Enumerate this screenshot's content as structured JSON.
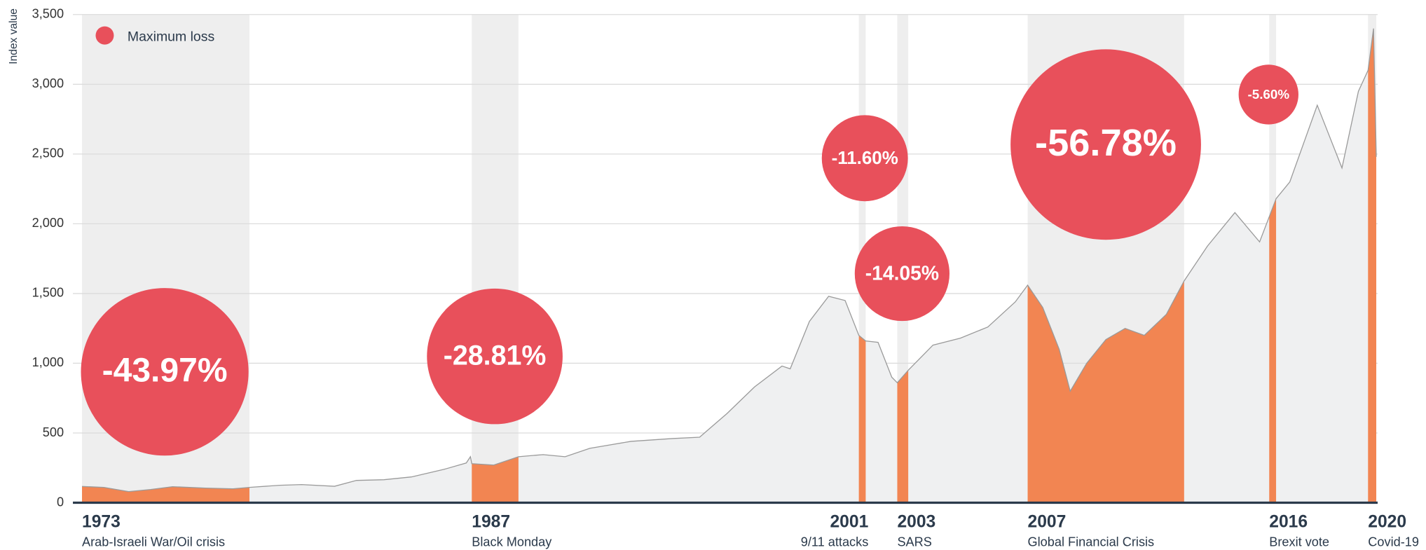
{
  "chart_data": {
    "type": "area",
    "y_label": "Index value",
    "legend": "Maximum loss",
    "xlim": [
      1973,
      2020.2
    ],
    "ylim": [
      0,
      3500
    ],
    "yticks": [
      0,
      {
        "value": 500,
        "label": "500"
      },
      {
        "value": 1000,
        "label": "1,000"
      },
      {
        "value": 1500,
        "label": "1,500"
      },
      {
        "value": 2000,
        "label": "2,000"
      },
      {
        "value": 2500,
        "label": "2,500"
      },
      {
        "value": 3000,
        "label": "3,000"
      },
      {
        "value": 3500,
        "label": "3,500"
      }
    ],
    "grid": true,
    "line_color": "#9a9a9a",
    "area_color": "#eff0f1",
    "crisis_color": "#f28552",
    "band_color": "#eeeeee",
    "bubble_color": "#e8505b",
    "x": [
      1973.0,
      1973.8,
      1974.7,
      1975.5,
      1976.3,
      1977.5,
      1978.5,
      1979.1,
      1980.2,
      1981.0,
      1982.2,
      1983.0,
      1984.0,
      1985.0,
      1986.2,
      1987.0,
      1987.15,
      1987.2,
      1988.0,
      1988.9,
      1989.8,
      1990.6,
      1991.5,
      1993.0,
      1994.5,
      1995.5,
      1996.5,
      1997.5,
      1998.5,
      1998.8,
      1999.5,
      2000.2,
      2000.8,
      2001.3,
      2001.55,
      2002.0,
      2002.5,
      2002.7,
      2003.1,
      2004.0,
      2005.0,
      2006.0,
      2007.0,
      2007.45,
      2008.0,
      2008.6,
      2009.0,
      2009.6,
      2010.3,
      2011.0,
      2011.7,
      2012.5,
      2013.15,
      2014.0,
      2015.0,
      2015.9,
      2016.25,
      2016.5,
      2017.0,
      2018.0,
      2018.9,
      2019.5,
      2019.85,
      2020.05,
      2020.15
    ],
    "values": [
      117,
      110,
      80,
      95,
      115,
      105,
      100,
      110,
      125,
      130,
      118,
      160,
      165,
      185,
      240,
      285,
      330,
      280,
      270,
      330,
      345,
      330,
      390,
      440,
      460,
      470,
      640,
      830,
      980,
      960,
      1300,
      1480,
      1450,
      1200,
      1160,
      1150,
      900,
      860,
      950,
      1130,
      1180,
      1260,
      1440,
      1560,
      1400,
      1100,
      800,
      1000,
      1170,
      1250,
      1200,
      1350,
      1590,
      1840,
      2080,
      1870,
      2050,
      2180,
      2300,
      2850,
      2400,
      2950,
      3100,
      3400,
      2480
    ],
    "crises": [
      {
        "year": "1973",
        "event": "Arab-Israeli War/Oil crisis",
        "start": 1973,
        "end": 1979.1,
        "loss": -43.97,
        "loss_label": "-43.97%"
      },
      {
        "year": "1987",
        "event": "Black Monday",
        "start": 1987.2,
        "end": 1988.9,
        "loss": -28.81,
        "loss_label": "-28.81%"
      },
      {
        "year": "2001",
        "event": "9/11 attacks",
        "start": 2001.3,
        "end": 2001.55,
        "loss": -11.6,
        "loss_label": "-11.60%"
      },
      {
        "year": "2003",
        "event": "SARS",
        "start": 2002.7,
        "end": 2003.1,
        "loss": -14.05,
        "loss_label": "-14.05%"
      },
      {
        "year": "2007",
        "event": "Global Financial Crisis",
        "start": 2007.45,
        "end": 2013.15,
        "loss": -56.78,
        "loss_label": "-56.78%"
      },
      {
        "year": "2016",
        "event": "Brexit vote",
        "start": 2016.25,
        "end": 2016.5,
        "loss": -5.6,
        "loss_label": "-5.60%"
      },
      {
        "year": "2020",
        "event": "Covid-19",
        "start": 2019.85,
        "end": 2020.15
      }
    ]
  }
}
